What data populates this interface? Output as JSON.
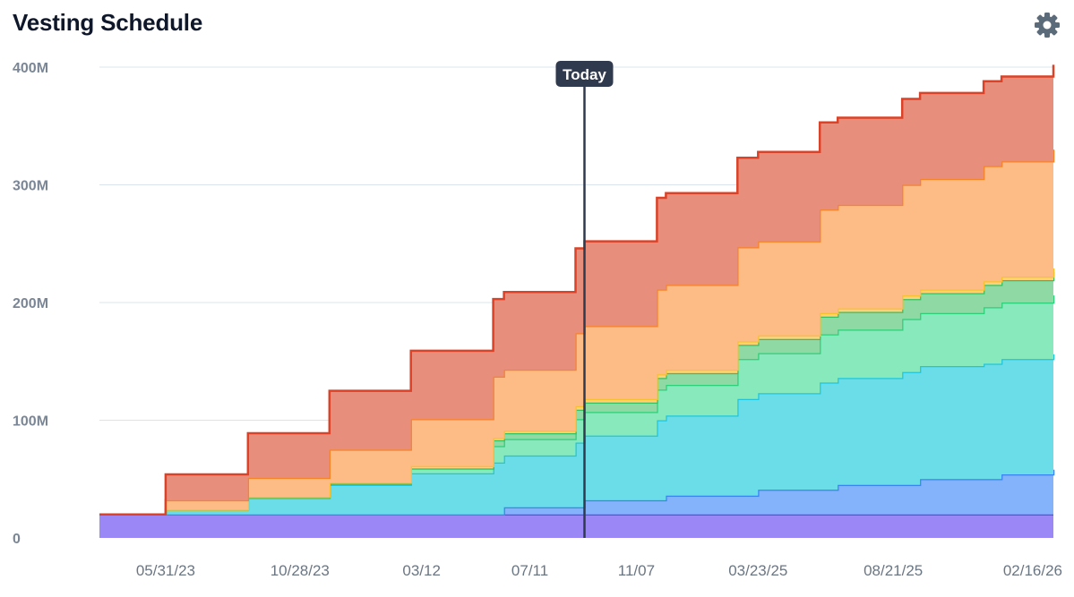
{
  "header": {
    "title": "Vesting Schedule",
    "settings_icon": "gear-icon"
  },
  "chart_data": {
    "type": "area",
    "stacked": true,
    "step": true,
    "title": "Vesting Schedule",
    "xlabel": "",
    "ylabel": "",
    "ylim": [
      0,
      400000000
    ],
    "y_ticks": [
      {
        "value": 0,
        "label": "0"
      },
      {
        "value": 100000000,
        "label": "100M"
      },
      {
        "value": 200000000,
        "label": "200M"
      },
      {
        "value": 300000000,
        "label": "300M"
      },
      {
        "value": 400000000,
        "label": "400M"
      }
    ],
    "x_ticks": [
      {
        "date": "2023-05-31",
        "label": "05/31/23"
      },
      {
        "date": "2023-10-28",
        "label": "10/28/23"
      },
      {
        "date": "2024-03-12",
        "label": "03/12"
      },
      {
        "date": "2024-07-11",
        "label": "07/11"
      },
      {
        "date": "2024-11-07",
        "label": "11/07"
      },
      {
        "date": "2025-03-23",
        "label": "03/23/25"
      },
      {
        "date": "2025-08-21",
        "label": "08/21/25"
      },
      {
        "date": "2026-02-16",
        "label": "02/16/26"
      }
    ],
    "x_range": [
      "2023-03-18",
      "2026-02-16"
    ],
    "today": {
      "date": "2024-09-10",
      "label": "Today"
    },
    "grid": true,
    "legend": "none",
    "series": [
      {
        "color": "#9b87f5",
        "line": "#5b4de8",
        "points": [
          [
            "2023-03-18",
            20000000
          ],
          [
            "2026-02-16",
            20000000
          ]
        ]
      },
      {
        "color": "#84b2fb",
        "line": "#3b82f6",
        "points": [
          [
            "2024-03-12",
            0
          ],
          [
            "2024-06-12",
            6000000
          ],
          [
            "2024-09-10",
            12000000
          ],
          [
            "2024-12-10",
            16000000
          ],
          [
            "2025-03-23",
            21000000
          ],
          [
            "2025-06-20",
            25000000
          ],
          [
            "2025-09-20",
            30000000
          ],
          [
            "2025-12-20",
            34000000
          ],
          [
            "2026-02-16",
            38000000
          ]
        ]
      },
      {
        "color": "#6adde9",
        "line": "#22c4dd",
        "points": [
          [
            "2023-03-18",
            0
          ],
          [
            "2023-05-31",
            4000000
          ],
          [
            "2023-08-31",
            14000000
          ],
          [
            "2023-11-30",
            25000000
          ],
          [
            "2024-02-29",
            35000000
          ],
          [
            "2024-05-31",
            44000000
          ],
          [
            "2024-08-31",
            55000000
          ],
          [
            "2024-11-30",
            68000000
          ],
          [
            "2025-02-28",
            82000000
          ],
          [
            "2025-05-31",
            91000000
          ],
          [
            "2025-08-31",
            96000000
          ],
          [
            "2025-11-30",
            98000000
          ],
          [
            "2026-02-16",
            98000000
          ]
        ]
      },
      {
        "color": "#88e9bd",
        "line": "#2ccf7a",
        "points": [
          [
            "2023-03-18",
            0
          ],
          [
            "2023-11-30",
            1000000
          ],
          [
            "2024-02-29",
            4000000
          ],
          [
            "2024-05-31",
            14000000
          ],
          [
            "2024-08-31",
            20000000
          ],
          [
            "2024-11-30",
            26000000
          ],
          [
            "2025-02-28",
            34000000
          ],
          [
            "2025-05-31",
            41000000
          ],
          [
            "2025-08-31",
            45000000
          ],
          [
            "2025-11-30",
            48000000
          ],
          [
            "2026-02-16",
            50000000
          ]
        ]
      },
      {
        "color": "#8ed9a4",
        "line": "#35c065",
        "points": [
          [
            "2024-02-01",
            0
          ],
          [
            "2024-05-31",
            5000000
          ],
          [
            "2024-08-31",
            8000000
          ],
          [
            "2024-11-30",
            10000000
          ],
          [
            "2025-02-28",
            12000000
          ],
          [
            "2025-05-31",
            15000000
          ],
          [
            "2025-08-31",
            17000000
          ],
          [
            "2025-11-30",
            19000000
          ],
          [
            "2026-02-16",
            20000000
          ]
        ]
      },
      {
        "color": "#fdd179",
        "line": "#f6c22b",
        "points": [
          [
            "2023-03-18",
            0
          ],
          [
            "2023-08-31",
            1000000
          ],
          [
            "2024-02-29",
            2000000
          ],
          [
            "2024-08-31",
            3000000
          ],
          [
            "2025-02-28",
            3000000
          ],
          [
            "2026-02-16",
            3000000
          ]
        ]
      },
      {
        "color": "#fdbc85",
        "line": "#f58427",
        "points": [
          [
            "2023-03-18",
            0
          ],
          [
            "2023-05-31",
            8000000
          ],
          [
            "2023-08-31",
            16000000
          ],
          [
            "2023-11-30",
            28000000
          ],
          [
            "2024-02-29",
            40000000
          ],
          [
            "2024-05-31",
            52000000
          ],
          [
            "2024-08-31",
            62000000
          ],
          [
            "2024-11-30",
            72000000
          ],
          [
            "2025-02-28",
            80000000
          ],
          [
            "2025-05-31",
            88000000
          ],
          [
            "2025-08-31",
            94000000
          ],
          [
            "2025-11-30",
            98000000
          ],
          [
            "2026-02-16",
            101000000
          ]
        ]
      },
      {
        "color": "#e88e7c",
        "line": "#db4227",
        "points": [
          [
            "2023-03-18",
            0
          ],
          [
            "2023-05-31",
            22000000
          ],
          [
            "2023-08-31",
            38000000
          ],
          [
            "2023-11-30",
            50000000
          ],
          [
            "2024-02-29",
            58000000
          ],
          [
            "2024-05-31",
            66000000
          ],
          [
            "2024-08-31",
            72000000
          ],
          [
            "2024-11-30",
            78000000
          ],
          [
            "2025-02-28",
            76000000
          ],
          [
            "2025-05-31",
            74000000
          ],
          [
            "2025-08-31",
            73000000
          ],
          [
            "2025-11-30",
            72000000
          ],
          [
            "2026-02-16",
            72000000
          ]
        ]
      }
    ]
  }
}
